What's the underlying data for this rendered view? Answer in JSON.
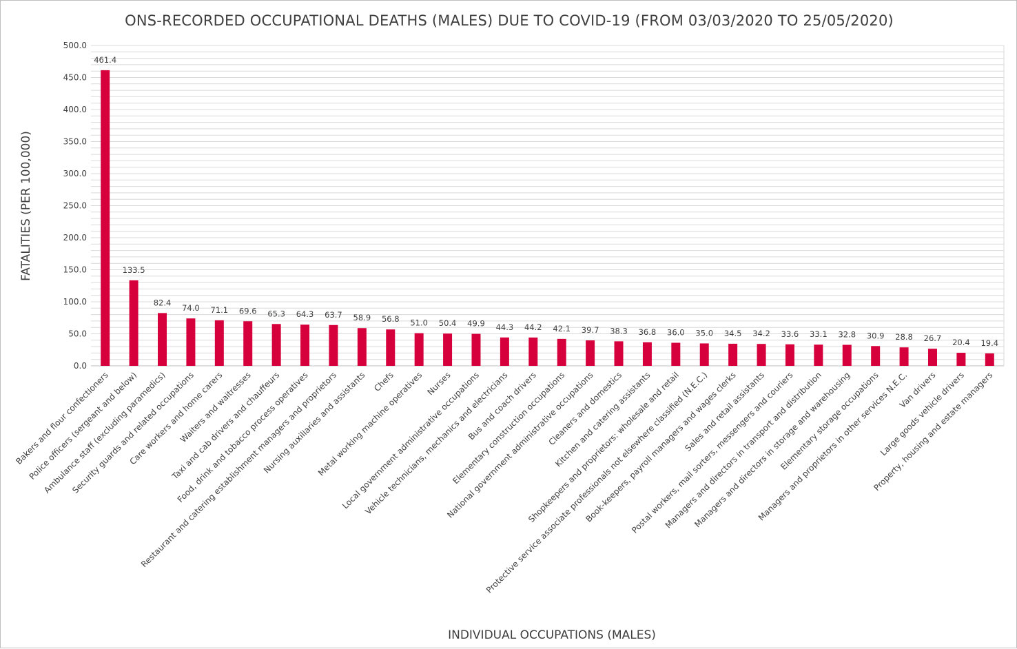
{
  "chart_data": {
    "type": "bar",
    "title": "ONS-RECORDED OCCUPATIONAL DEATHS (MALES) DUE TO COVID-19 (FROM 03/03/2020 TO 25/05/2020)",
    "xlabel": "INDIVIDUAL OCCUPATIONS (MALES)",
    "ylabel": "FATALITIES (PER 100,000)",
    "ylim": [
      0,
      500
    ],
    "ytick_step": 50,
    "ytick_labels": [
      "0.0",
      "50.0",
      "100.0",
      "150.0",
      "200.0",
      "250.0",
      "300.0",
      "350.0",
      "400.0",
      "450.0",
      "500.0"
    ],
    "grid": true,
    "bar_color": "#d6003c",
    "categories": [
      "Bakers and flour confectioners",
      "Police officers (sergeant and below)",
      "Ambulance staff (excluding paramedics)",
      "Security guards and related occupations",
      "Care workers and home carers",
      "Waiters and waitresses",
      "Taxi and cab drivers and chauffeurs",
      "Food, drink and tobacco process operatives",
      "Restaurant and catering establishment managers and proprietors",
      "Nursing auxiliaries and assistants",
      "Chefs",
      "Metal working machine operatives",
      "Nurses",
      "Local government administrative occupations",
      "Vehicle technicians, mechanics and electricians",
      "Bus and coach drivers",
      "Elementary construction occupations",
      "National government administrative occupations",
      "Cleaners and domestics",
      "Kitchen and catering assistants",
      "Shopkeepers and proprietors: wholesale and retail",
      "Protective service associate professionals not elsewhere classified (N.E.C.)",
      "Book-keepers, payroll managers and wages clerks",
      "Sales and retail assistants",
      "Postal workers, mail sorters, messengers and couriers",
      "Managers and directors in transport and distribution",
      "Managers and directors in storage and warehousing",
      "Elementary storage occupations",
      "Managers and proprietors in other services N.E.C.",
      "Van drivers",
      "Large goods vehicle drivers",
      "Property, housing and estate managers"
    ],
    "values": [
      461.4,
      133.5,
      82.4,
      74.0,
      71.1,
      69.6,
      65.3,
      64.3,
      63.7,
      58.9,
      56.8,
      51.0,
      50.4,
      49.9,
      44.3,
      44.2,
      42.1,
      39.7,
      38.3,
      36.8,
      36.0,
      35.0,
      34.5,
      34.2,
      33.6,
      33.1,
      32.8,
      30.9,
      28.8,
      26.7,
      20.4,
      19.4
    ],
    "data_labels": [
      "461.4",
      "133.5",
      "82.4",
      "74.0",
      "71.1",
      "69.6",
      "65.3",
      "64.3",
      "63.7",
      "58.9",
      "56.8",
      "51.0",
      "50.4",
      "49.9",
      "44.3",
      "44.2",
      "42.1",
      "39.7",
      "38.3",
      "36.8",
      "36.0",
      "35.0",
      "34.5",
      "34.2",
      "33.6",
      "33.1",
      "32.8",
      "30.9",
      "28.8",
      "26.7",
      "20.4",
      "19.4"
    ]
  }
}
